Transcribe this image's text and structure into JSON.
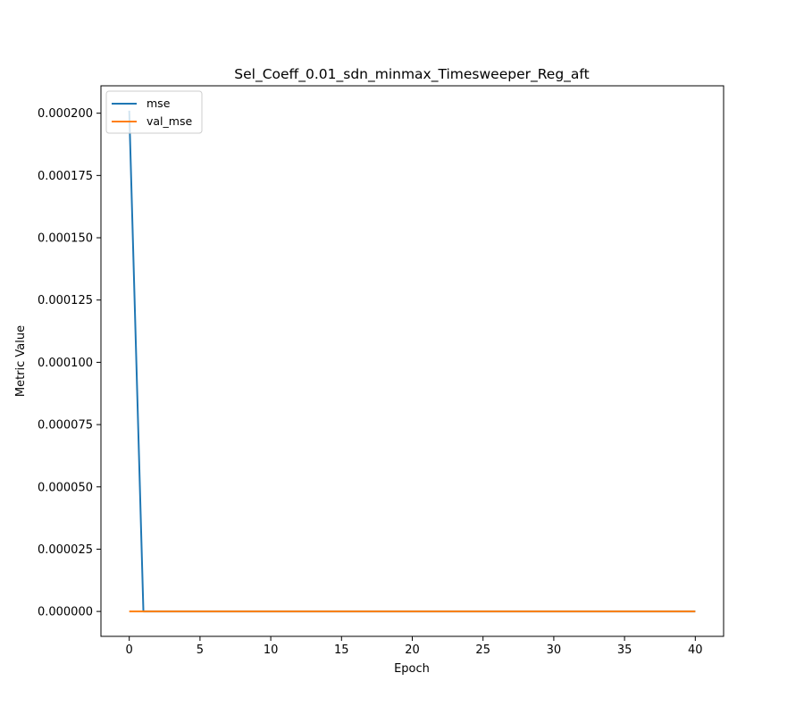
{
  "chart_data": {
    "type": "line",
    "title": "Sel_Coeff_0.01_sdn_minmax_Timesweeper_Reg_aft",
    "xlabel": "Epoch",
    "ylabel": "Metric Value",
    "xlim": [
      -2,
      42
    ],
    "ylim": [
      -1e-05,
      0.000211
    ],
    "x_ticks": [
      0,
      5,
      10,
      15,
      20,
      25,
      30,
      35,
      40
    ],
    "y_ticks": [
      0.0,
      2.5e-05,
      5e-05,
      7.5e-05,
      0.0001,
      0.000125,
      0.00015,
      0.000175,
      0.0002
    ],
    "y_tick_labels": [
      "0.000000",
      "0.000025",
      "0.000050",
      "0.000075",
      "0.000100",
      "0.000125",
      "0.000150",
      "0.000175",
      "0.000200"
    ],
    "grid": false,
    "legend_position": "top-left",
    "series": [
      {
        "name": "mse",
        "color": "#1f77b4",
        "x": [
          0,
          1,
          2,
          3,
          4,
          5,
          6,
          7,
          8,
          9,
          10,
          11,
          12,
          13,
          14,
          15,
          16,
          17,
          18,
          19,
          20,
          21,
          22,
          23,
          24,
          25,
          26,
          27,
          28,
          29,
          30,
          31,
          32,
          33,
          34,
          35,
          36,
          37,
          38,
          39,
          40
        ],
        "values": [
          0.000201,
          0,
          0,
          0,
          0,
          0,
          0,
          0,
          0,
          0,
          0,
          0,
          0,
          0,
          0,
          0,
          0,
          0,
          0,
          0,
          0,
          0,
          0,
          0,
          0,
          0,
          0,
          0,
          0,
          0,
          0,
          0,
          0,
          0,
          0,
          0,
          0,
          0,
          0,
          0,
          0
        ]
      },
      {
        "name": "val_mse",
        "color": "#ff7f0e",
        "x": [
          0,
          1,
          2,
          3,
          4,
          5,
          6,
          7,
          8,
          9,
          10,
          11,
          12,
          13,
          14,
          15,
          16,
          17,
          18,
          19,
          20,
          21,
          22,
          23,
          24,
          25,
          26,
          27,
          28,
          29,
          30,
          31,
          32,
          33,
          34,
          35,
          36,
          37,
          38,
          39,
          40
        ],
        "values": [
          0,
          0,
          0,
          0,
          0,
          0,
          0,
          0,
          0,
          0,
          0,
          0,
          0,
          0,
          0,
          0,
          0,
          0,
          0,
          0,
          0,
          0,
          0,
          0,
          0,
          0,
          0,
          0,
          0,
          0,
          0,
          0,
          0,
          0,
          0,
          0,
          0,
          0,
          0,
          0,
          0
        ]
      }
    ]
  }
}
